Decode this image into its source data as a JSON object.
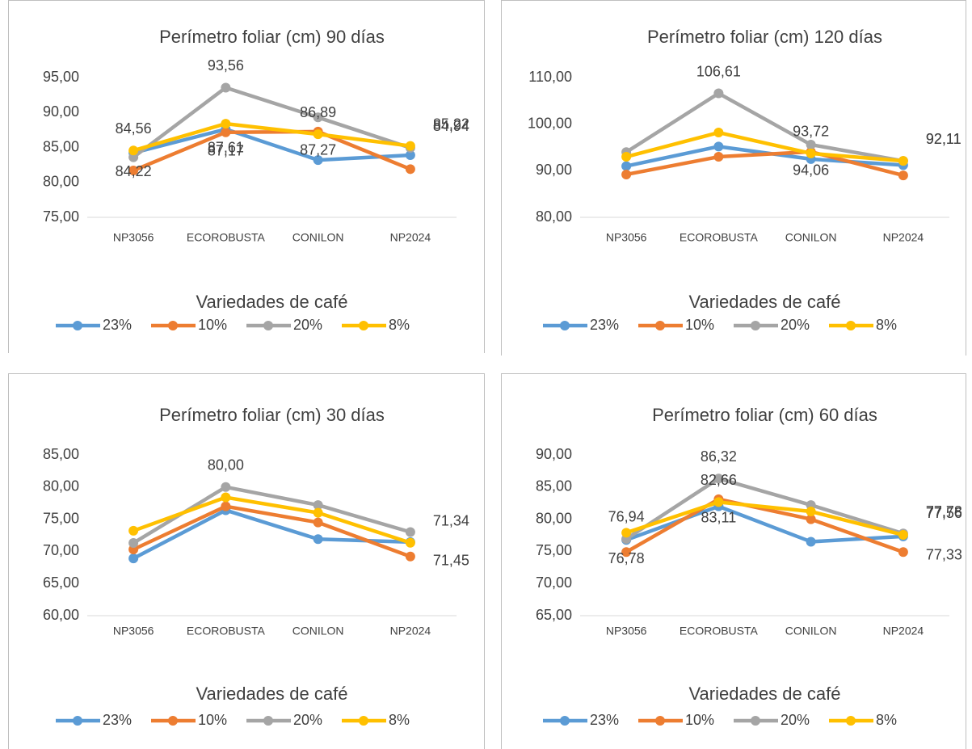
{
  "charts": [
    {
      "chart_data": {
        "type": "line",
        "title": "Perímetro foliar (cm) 90 días",
        "x_label": "Variedades de café",
        "categories": [
          "NP3056",
          "ECOROBUSTA",
          "CONILON",
          "NP2024"
        ],
        "ylim": [
          75,
          95
        ],
        "yticks": [
          {
            "value": 75,
            "label": "75,00"
          },
          {
            "value": 80,
            "label": "80,00"
          },
          {
            "value": 85,
            "label": "85,00"
          },
          {
            "value": 90,
            "label": "90,00"
          },
          {
            "value": 95,
            "label": "95,00"
          }
        ],
        "series": [
          {
            "name": "23%",
            "color": "#5b9bd5",
            "values": [
              84.22,
              87.61,
              83.2,
              83.9
            ],
            "value_labels": [
              "84,22",
              "87,61",
              null,
              null
            ]
          },
          {
            "name": "10%",
            "color": "#ed7d31",
            "values": [
              81.7,
              87.17,
              87.27,
              81.9
            ],
            "value_labels": [
              null,
              "87,17",
              "87,27",
              null
            ]
          },
          {
            "name": "20%",
            "color": "#a5a5a5",
            "values": [
              83.6,
              93.56,
              89.3,
              84.94
            ],
            "value_labels": [
              null,
              "93,56",
              null,
              "84,94"
            ]
          },
          {
            "name": "8%",
            "color": "#ffc000",
            "values": [
              84.56,
              88.4,
              86.89,
              85.22
            ],
            "value_labels": [
              "84,56",
              null,
              "86,89",
              "85,22"
            ]
          }
        ]
      }
    },
    {
      "chart_data": {
        "type": "line",
        "title": "Perímetro foliar (cm) 120 días",
        "x_label": "Variedades de café",
        "categories": [
          "NP3056",
          "ECOROBUSTA",
          "CONILON",
          "NP2024"
        ],
        "ylim": [
          80,
          110
        ],
        "yticks": [
          {
            "value": 80,
            "label": "80,00"
          },
          {
            "value": 90,
            "label": "90,00"
          },
          {
            "value": 100,
            "label": "100,00"
          },
          {
            "value": 110,
            "label": "110,00"
          }
        ],
        "series": [
          {
            "name": "23%",
            "color": "#5b9bd5",
            "values": [
              91.0,
              95.2,
              92.5,
              91.2
            ],
            "value_labels": [
              null,
              null,
              null,
              null
            ]
          },
          {
            "name": "10%",
            "color": "#ed7d31",
            "values": [
              89.2,
              93.0,
              94.06,
              89.0
            ],
            "value_labels": [
              null,
              null,
              "94,06",
              null
            ]
          },
          {
            "name": "20%",
            "color": "#a5a5a5",
            "values": [
              94.0,
              106.61,
              95.6,
              92.11
            ],
            "value_labels": [
              null,
              "106,61",
              null,
              "92,11"
            ]
          },
          {
            "name": "8%",
            "color": "#ffc000",
            "values": [
              93.0,
              98.2,
              93.72,
              92.11
            ],
            "value_labels": [
              null,
              null,
              "93,72",
              "92,11"
            ]
          }
        ]
      }
    },
    {
      "chart_data": {
        "type": "line",
        "title": "Perímetro foliar (cm) 30 días",
        "x_label": "Variedades de café",
        "categories": [
          "NP3056",
          "ECOROBUSTA",
          "CONILON",
          "NP2024"
        ],
        "ylim": [
          60,
          85
        ],
        "yticks": [
          {
            "value": 60,
            "label": "60,00"
          },
          {
            "value": 65,
            "label": "65,00"
          },
          {
            "value": 70,
            "label": "70,00"
          },
          {
            "value": 75,
            "label": "75,00"
          },
          {
            "value": 80,
            "label": "80,00"
          },
          {
            "value": 85,
            "label": "85,00"
          }
        ],
        "series": [
          {
            "name": "23%",
            "color": "#5b9bd5",
            "values": [
              68.9,
              76.4,
              71.9,
              71.45
            ],
            "value_labels": [
              null,
              null,
              null,
              "71,45"
            ]
          },
          {
            "name": "10%",
            "color": "#ed7d31",
            "values": [
              70.3,
              77.0,
              74.5,
              69.2
            ],
            "value_labels": [
              null,
              null,
              null,
              null
            ]
          },
          {
            "name": "20%",
            "color": "#a5a5a5",
            "values": [
              71.3,
              80.0,
              77.2,
              73.0
            ],
            "value_labels": [
              null,
              "80,00",
              null,
              null
            ]
          },
          {
            "name": "8%",
            "color": "#ffc000",
            "values": [
              73.2,
              78.4,
              76.0,
              71.34
            ],
            "value_labels": [
              null,
              null,
              null,
              "71,34"
            ]
          }
        ]
      }
    },
    {
      "chart_data": {
        "type": "line",
        "title": "Perímetro foliar (cm) 60 días",
        "x_label": "Variedades de café",
        "categories": [
          "NP3056",
          "ECOROBUSTA",
          "CONILON",
          "NP2024"
        ],
        "ylim": [
          65,
          90
        ],
        "yticks": [
          {
            "value": 65,
            "label": "65,00"
          },
          {
            "value": 70,
            "label": "70,00"
          },
          {
            "value": 75,
            "label": "75,00"
          },
          {
            "value": 80,
            "label": "80,00"
          },
          {
            "value": 85,
            "label": "85,00"
          },
          {
            "value": 90,
            "label": "90,00"
          }
        ],
        "series": [
          {
            "name": "23%",
            "color": "#5b9bd5",
            "values": [
              76.78,
              82.0,
              76.5,
              77.33
            ],
            "value_labels": [
              "76,78",
              null,
              null,
              "77,33"
            ]
          },
          {
            "name": "10%",
            "color": "#ed7d31",
            "values": [
              74.9,
              83.11,
              80.0,
              74.9
            ],
            "value_labels": [
              null,
              "83,11",
              null,
              null
            ]
          },
          {
            "name": "20%",
            "color": "#a5a5a5",
            "values": [
              76.94,
              86.32,
              82.2,
              77.78
            ],
            "value_labels": [
              "76,94",
              "86,32",
              null,
              "77,78"
            ]
          },
          {
            "name": "8%",
            "color": "#ffc000",
            "values": [
              77.9,
              82.66,
              81.2,
              77.56
            ],
            "value_labels": [
              null,
              "82,66",
              null,
              "77,56"
            ]
          }
        ]
      }
    }
  ]
}
